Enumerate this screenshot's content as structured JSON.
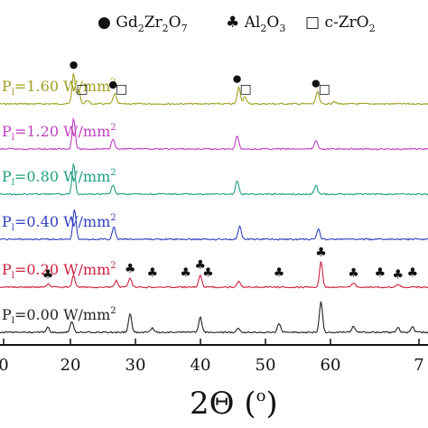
{
  "chart_data": {
    "type": "line",
    "title": "",
    "xlabel": "2Θ (°)",
    "xlabel_parts": {
      "main": "2Θ (",
      "sup": "o",
      "close": ")"
    },
    "ylabel": "",
    "xlim": [
      20,
      70
    ],
    "x_ticks": [
      "0",
      "20",
      "30",
      "40",
      "50",
      "60",
      "7"
    ],
    "x_tick_values": [
      20,
      28,
      38,
      48,
      58,
      68,
      70
    ],
    "legend": {
      "placement": "top",
      "entries": [
        {
          "marker": "●",
          "parts": [
            "Gd",
            "2",
            "Zr",
            "2",
            "O",
            "7"
          ]
        },
        {
          "marker": "♣",
          "parts": [
            "Al",
            "2",
            "O",
            "3"
          ]
        },
        {
          "marker": "□",
          "parts": [
            "c-ZrO",
            "2"
          ]
        }
      ]
    },
    "series": [
      {
        "name": "P1=1.60 W/mm2",
        "label_main": "P",
        "label_sub": "l",
        "label_rest": "=1.60 W/mm",
        "label_sup": "2",
        "color": "#a0a020",
        "peaks": [
          [
            28.6,
            1.0
          ],
          [
            29.2,
            0.45
          ],
          [
            30.2,
            0.12
          ],
          [
            33.4,
            0.35
          ],
          [
            47.9,
            0.55
          ],
          [
            48.6,
            0.25
          ],
          [
            57.1,
            0.4
          ],
          [
            59.0,
            0.08
          ]
        ],
        "annotations": [
          {
            "symbol": "●",
            "x": 28.6
          },
          {
            "symbol": "□",
            "x": 29.6
          },
          {
            "symbol": "●",
            "x": 33.2
          },
          {
            "symbol": "□",
            "x": 34.2
          },
          {
            "symbol": "●",
            "x": 47.7
          },
          {
            "symbol": "□",
            "x": 48.7
          },
          {
            "symbol": "●",
            "x": 56.9
          },
          {
            "symbol": "□",
            "x": 57.9
          }
        ]
      },
      {
        "name": "P1=1.20 W/mm2",
        "label_main": "P",
        "label_sub": "l",
        "label_rest": "=1.20 W/mm",
        "label_sup": "2",
        "color": "#c040c0",
        "peaks": [
          [
            28.6,
            1.0
          ],
          [
            33.2,
            0.35
          ],
          [
            47.7,
            0.45
          ],
          [
            56.9,
            0.3
          ]
        ],
        "annotations": []
      },
      {
        "name": "P1=0.80 W/mm2",
        "label_main": "P",
        "label_sub": "l",
        "label_rest": "=0.80 W/mm",
        "label_sup": "2",
        "color": "#20a080",
        "peaks": [
          [
            28.6,
            1.0
          ],
          [
            33.2,
            0.3
          ],
          [
            47.7,
            0.45
          ],
          [
            56.9,
            0.3
          ]
        ],
        "annotations": []
      },
      {
        "name": "P1=0.40 W/mm2",
        "label_main": "P",
        "label_sub": "l",
        "label_rest": "=0.40 W/mm",
        "label_sup": "2",
        "color": "#3040c0",
        "peaks": [
          [
            28.7,
            1.0
          ],
          [
            33.3,
            0.4
          ],
          [
            48.0,
            0.45
          ],
          [
            57.2,
            0.35
          ]
        ],
        "annotations": []
      },
      {
        "name": "P1=0.20 W/mm2",
        "label_main": "P",
        "label_sub": "l",
        "label_rest": "=0.20 W/mm",
        "label_sup": "2",
        "color": "#d02040",
        "peaks": [
          [
            25.6,
            0.12
          ],
          [
            28.6,
            0.45
          ],
          [
            33.6,
            0.25
          ],
          [
            35.2,
            0.35
          ],
          [
            43.4,
            0.5
          ],
          [
            47.9,
            0.25
          ],
          [
            57.5,
            1.0
          ],
          [
            61.3,
            0.18
          ],
          [
            66.5,
            0.12
          ]
        ],
        "annotations": [
          {
            "symbol": "♣",
            "x": 25.6
          },
          {
            "symbol": "♣",
            "x": 35.2
          },
          {
            "symbol": "♣",
            "x": 37.8
          },
          {
            "symbol": "♣",
            "x": 41.7
          },
          {
            "symbol": "♣",
            "x": 43.4
          },
          {
            "symbol": "♣",
            "x": 44.3
          },
          {
            "symbol": "♣",
            "x": 52.6
          },
          {
            "symbol": "♣",
            "x": 57.5
          },
          {
            "symbol": "♣",
            "x": 61.3
          },
          {
            "symbol": "♣",
            "x": 64.4
          },
          {
            "symbol": "♣",
            "x": 66.5
          },
          {
            "symbol": "♣",
            "x": 68.2
          }
        ]
      },
      {
        "name": "P1=0.00 W/mm2",
        "label_main": "P",
        "label_sub": "l",
        "label_rest": "=0.00 W/mm",
        "label_sup": "2",
        "color": "#222222",
        "peaks": [
          [
            25.6,
            0.15
          ],
          [
            28.4,
            0.35
          ],
          [
            35.2,
            0.6
          ],
          [
            37.8,
            0.15
          ],
          [
            43.4,
            0.5
          ],
          [
            47.8,
            0.15
          ],
          [
            52.6,
            0.3
          ],
          [
            57.5,
            1.0
          ],
          [
            61.3,
            0.2
          ],
          [
            66.5,
            0.15
          ],
          [
            68.2,
            0.18
          ]
        ],
        "annotations": []
      }
    ]
  }
}
